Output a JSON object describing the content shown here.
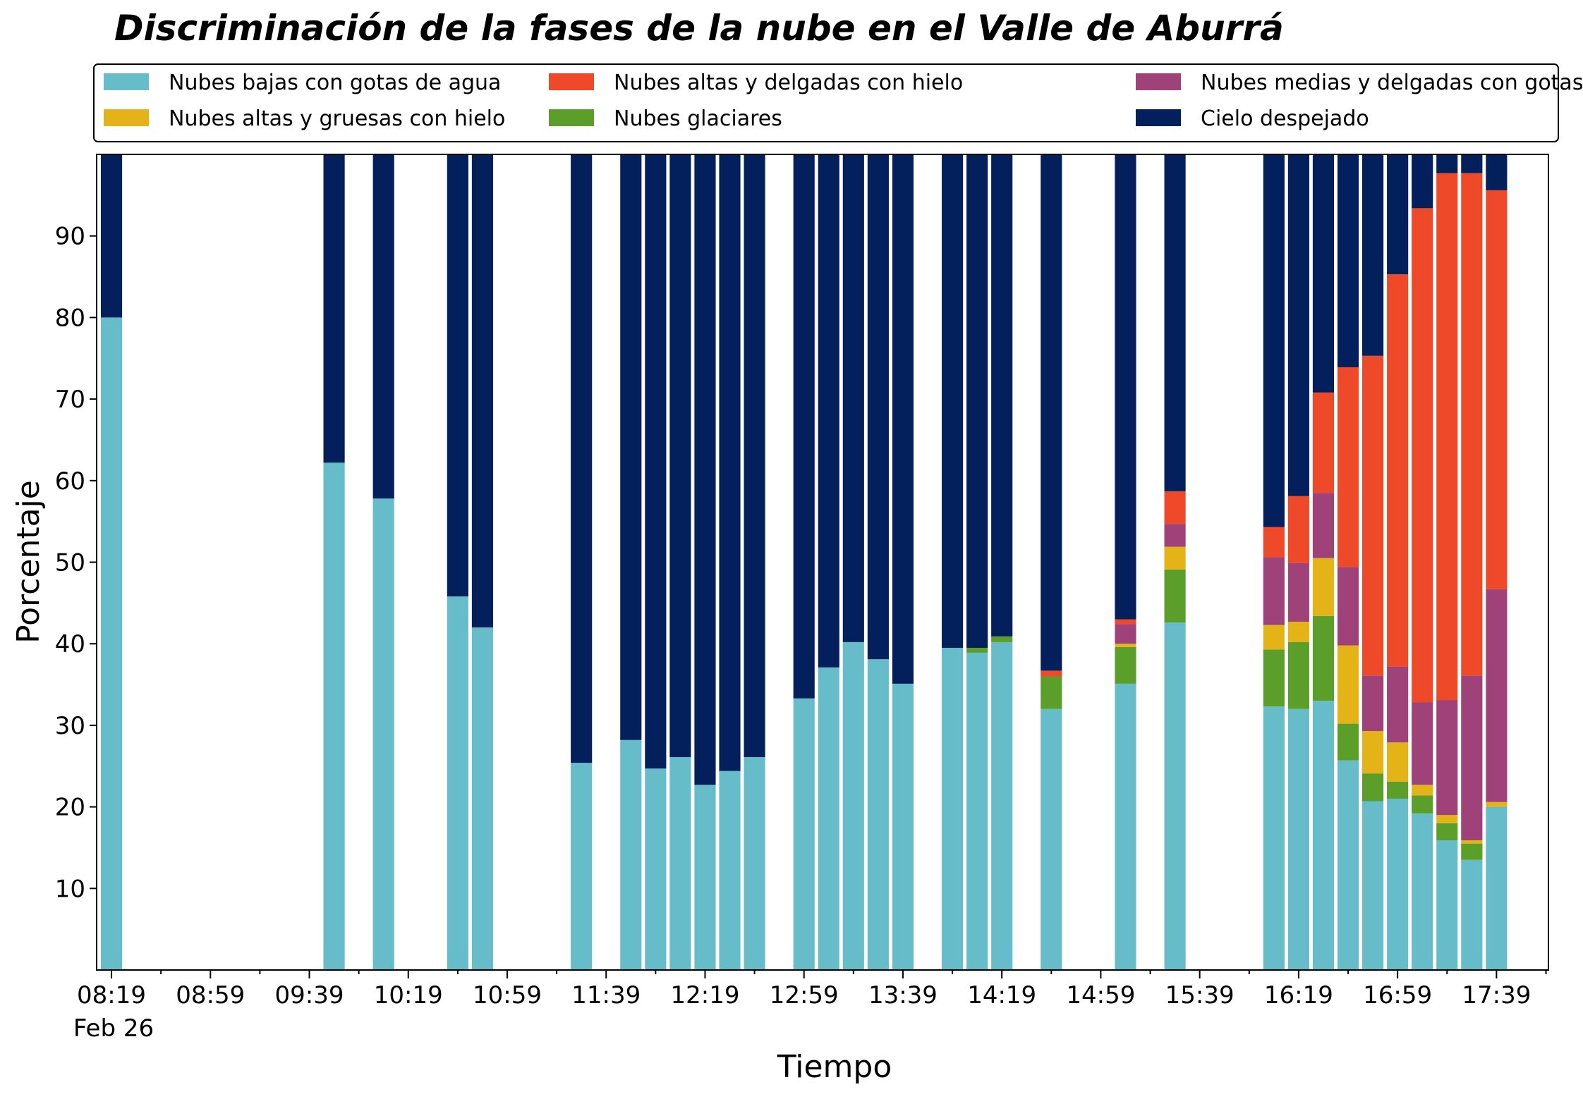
{
  "chart_data": {
    "type": "bar",
    "stacked": true,
    "title": "Discriminación de la fases de la nube en el Valle de Aburrá",
    "xlabel": "Tiempo",
    "ylabel": "Porcentaje",
    "x_tick_labels": [
      "08:19",
      "08:59",
      "09:39",
      "10:19",
      "10:59",
      "11:39",
      "12:19",
      "12:59",
      "13:39",
      "14:19",
      "14:59",
      "15:39",
      "16:19",
      "16:59",
      "17:39"
    ],
    "x_date_label": "Feb 26",
    "x_range": [
      "08:13",
      "18:00"
    ],
    "ylim": [
      0,
      100
    ],
    "y_ticks": [
      10,
      20,
      30,
      40,
      50,
      60,
      70,
      80,
      90
    ],
    "grid": false,
    "legend_position": "top",
    "bar_width_minutes": 8.6,
    "series": [
      {
        "name": "Nubes bajas con gotas de agua",
        "color": "#66bdc9"
      },
      {
        "name": "Nubes glaciares",
        "color": "#5b9e2a"
      },
      {
        "name": "Nubes altas y gruesas con hielo",
        "color": "#e3b317"
      },
      {
        "name": "Nubes medias y delgadas con gotas de agua",
        "color": "#a0427a"
      },
      {
        "name": "Nubes altas y delgadas con hielo",
        "color": "#ee4a2a"
      },
      {
        "name": "Cielo despejado",
        "color": "#03205d"
      }
    ],
    "legend_order": [
      0,
      2,
      4,
      1,
      3,
      5
    ],
    "x": [
      "08:19",
      "09:49",
      "10:09",
      "10:39",
      "10:49",
      "11:29",
      "11:49",
      "11:59",
      "12:09",
      "12:19",
      "12:29",
      "12:39",
      "12:59",
      "13:09",
      "13:19",
      "13:29",
      "13:39",
      "13:59",
      "14:09",
      "14:19",
      "14:39",
      "15:09",
      "15:29",
      "16:09",
      "16:19",
      "16:29",
      "16:39",
      "16:49",
      "16:59",
      "17:09",
      "17:19",
      "17:29",
      "17:39"
    ],
    "values": [
      [
        80.0,
        0,
        0,
        0,
        0,
        20.0
      ],
      [
        62.2,
        0,
        0,
        0,
        0,
        37.8
      ],
      [
        57.8,
        0,
        0,
        0,
        0,
        42.2
      ],
      [
        45.8,
        0,
        0,
        0,
        0,
        54.2
      ],
      [
        42.0,
        0,
        0,
        0,
        0,
        58.0
      ],
      [
        25.4,
        0,
        0,
        0,
        0,
        74.6
      ],
      [
        28.2,
        0,
        0,
        0,
        0,
        71.8
      ],
      [
        24.7,
        0,
        0,
        0,
        0,
        75.3
      ],
      [
        26.1,
        0,
        0,
        0,
        0,
        73.9
      ],
      [
        22.7,
        0,
        0,
        0,
        0,
        77.3
      ],
      [
        24.4,
        0,
        0,
        0,
        0,
        75.6
      ],
      [
        26.1,
        0,
        0,
        0,
        0,
        73.9
      ],
      [
        33.3,
        0,
        0,
        0,
        0,
        66.7
      ],
      [
        37.1,
        0,
        0,
        0,
        0,
        62.9
      ],
      [
        40.2,
        0,
        0,
        0,
        0,
        59.8
      ],
      [
        38.1,
        0,
        0,
        0,
        0,
        61.9
      ],
      [
        35.1,
        0,
        0,
        0,
        0,
        64.9
      ],
      [
        39.5,
        0,
        0,
        0,
        0,
        60.5
      ],
      [
        38.9,
        0.6,
        0,
        0,
        0,
        60.5
      ],
      [
        40.2,
        0.7,
        0,
        0,
        0,
        59.1
      ],
      [
        32.0,
        4.0,
        0,
        0,
        0.7,
        63.3
      ],
      [
        35.1,
        4.5,
        0.4,
        2.4,
        0.6,
        57.0
      ],
      [
        42.6,
        6.5,
        2.8,
        2.8,
        4.0,
        41.3
      ],
      [
        32.3,
        7.0,
        3.0,
        8.3,
        3.7,
        45.7
      ],
      [
        32.0,
        8.2,
        2.5,
        7.2,
        8.2,
        41.9
      ],
      [
        33.0,
        10.4,
        7.1,
        8.0,
        12.3,
        29.2
      ],
      [
        25.7,
        4.5,
        9.6,
        9.6,
        24.5,
        26.1
      ],
      [
        20.7,
        3.4,
        5.2,
        6.8,
        39.2,
        24.7
      ],
      [
        21.0,
        2.1,
        4.8,
        9.3,
        48.1,
        14.7
      ],
      [
        19.2,
        2.2,
        1.3,
        10.1,
        60.6,
        6.6
      ],
      [
        15.9,
        2.1,
        1.0,
        14.1,
        64.6,
        2.3
      ],
      [
        13.5,
        2.0,
        0.4,
        20.2,
        61.6,
        2.3
      ],
      [
        20.0,
        0,
        0.6,
        26.1,
        48.9,
        4.4
      ]
    ]
  }
}
